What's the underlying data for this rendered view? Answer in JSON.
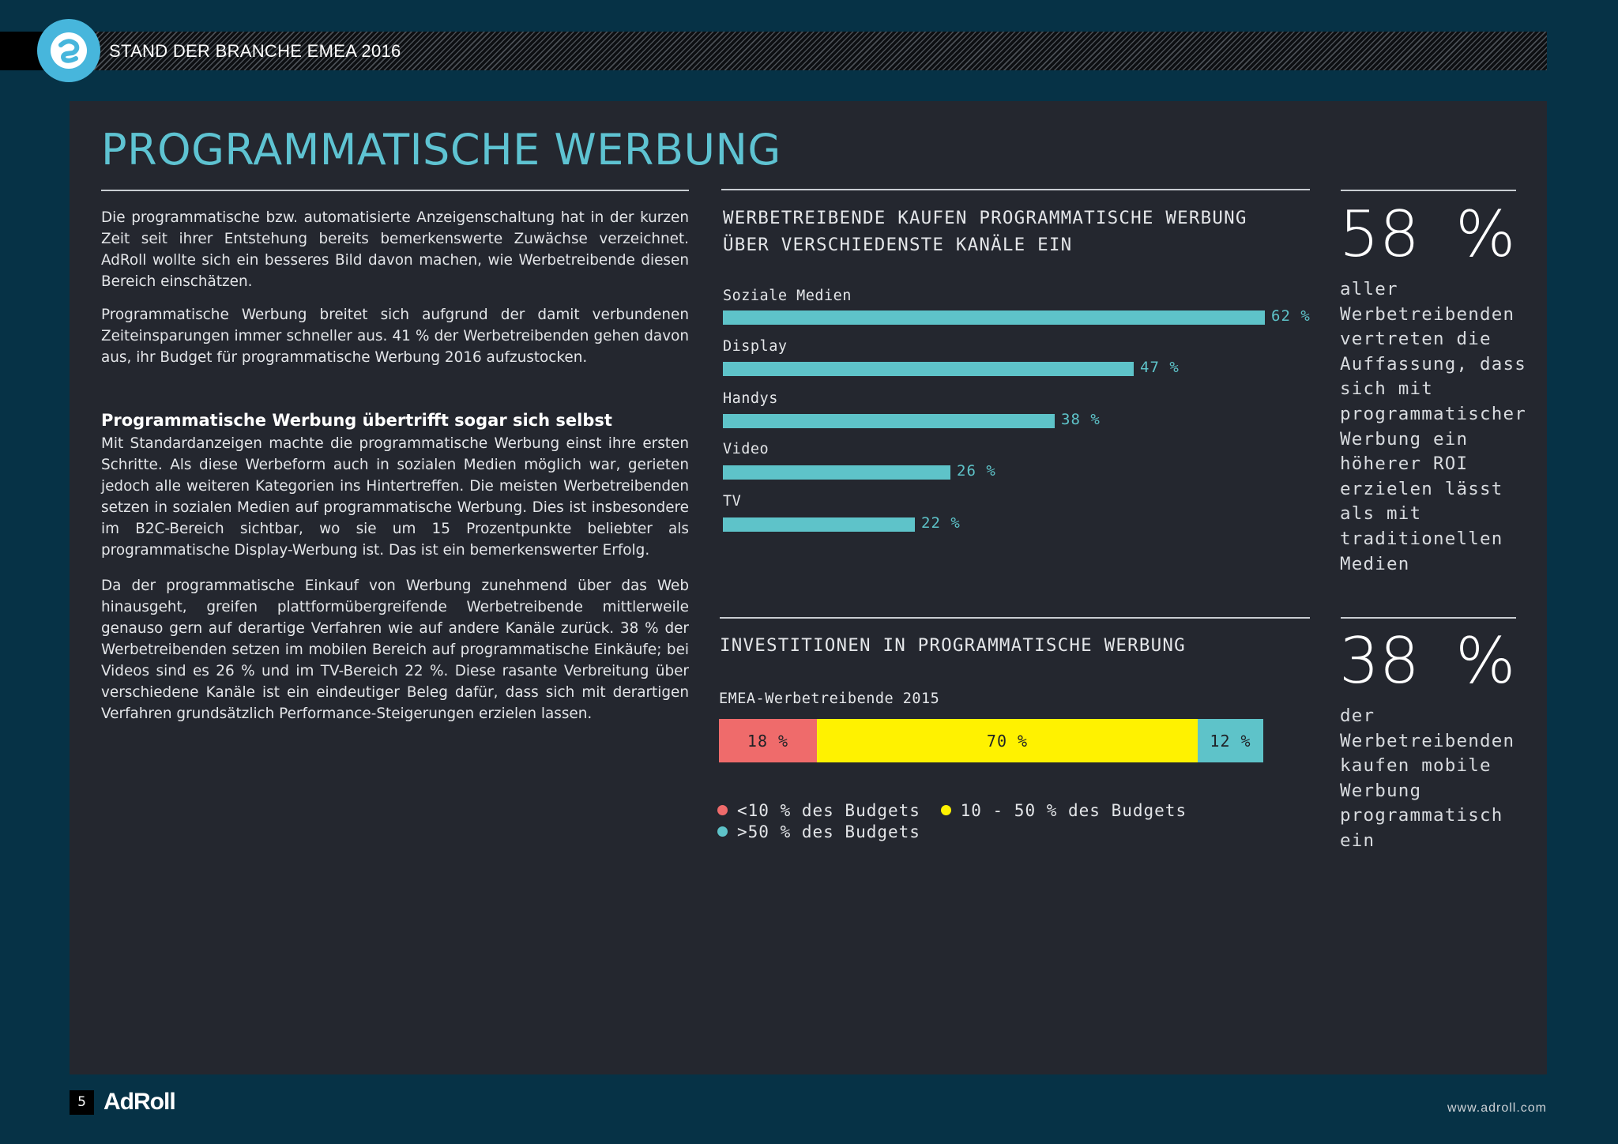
{
  "header": {
    "title": "STAND DER BRANCHE EMEA 2016",
    "logo_icon": "adroll-logo-icon"
  },
  "page_title": "PROGRAMMATISCHE WERBUNG",
  "left_column": {
    "paragraphs": [
      "Die programmatische bzw. automatisierte Anzeigenschaltung hat in der kurzen Zeit seit ihrer Entstehung bereits bemerkenswerte Zuwächse verzeichnet. AdRoll wollte sich ein besseres Bild davon machen, wie Werbetreibende diesen Bereich einschätzen.",
      "Programmatische Werbung breitet sich aufgrund der damit verbundenen Zeiteinsparungen immer schneller aus. 41 % der Werbetreibenden gehen davon aus, ihr Budget für programmatische Werbung 2016 aufzustocken.",
      "Mit Standardanzeigen machte die programmatische Werbung einst ihre ersten Schritte. Als diese Werbeform auch in sozialen Medien möglich war, gerieten jedoch alle weiteren Kategorien ins Hintertreffen. Die meisten Werbetreibenden setzen in sozialen Medien auf programmatische Werbung. Dies ist insbesondere im B2C-Bereich sichtbar, wo sie um 15 Prozentpunkte beliebter als programmatische Display-Werbung ist. Das ist ein bemerkenswerter Erfolg.",
      "Da der programmatische Einkauf von Werbung zunehmend über das Web hinausgeht, greifen plattformübergreifende Werbetreibende mittlerweile genauso gern auf derartige Verfahren wie auf andere Kanäle zurück. 38 % der Werbetreibenden setzen im mobilen Bereich auf programmatische Einkäufe; bei Videos sind es 26 % und im TV-Bereich 22 %. Diese rasante Verbreitung über verschiedene Kanäle ist ein eindeutiger Beleg dafür, dass sich mit derartigen Verfahren grundsätzlich Performance-Steigerungen erzielen lassen."
    ],
    "subheading": "Programmatische Werbung übertrifft sogar sich selbst"
  },
  "chart_data": [
    {
      "type": "bar",
      "orientation": "horizontal",
      "title": "WERBETREIBENDE KAUFEN PROGRAMMATISCHE WERBUNG ÜBER VERSCHIEDENSTE KANÄLE EIN",
      "categories": [
        "Soziale Medien",
        "Display",
        "Handys",
        "Video",
        "TV"
      ],
      "values": [
        62,
        47,
        38,
        26,
        22
      ],
      "value_labels": [
        "62 %",
        "47 %",
        "38 %",
        "26 %",
        "22 %"
      ],
      "bar_color": "#5ec3c9",
      "xlim": [
        0,
        62
      ]
    },
    {
      "type": "bar",
      "orientation": "horizontal",
      "stacked": true,
      "title": "INVESTITIONEN IN PROGRAMMATISCHE WERBUNG",
      "categories": [
        "EMEA-Werbetreibende 2015"
      ],
      "series": [
        {
          "name": "<10 % des Budgets",
          "values": [
            18
          ],
          "label": "18 %",
          "color": "#ef6b6b"
        },
        {
          "name": "10 - 50 % des Budgets",
          "values": [
            70
          ],
          "label": "70 %",
          "color": "#fff200"
        },
        {
          "name": ">50 % des Budgets",
          "values": [
            12
          ],
          "label": "12 %",
          "color": "#5ec3c9"
        }
      ],
      "legend_placement": "bottom"
    }
  ],
  "stats": [
    {
      "value": "58 %",
      "text": "aller Werbetreibenden vertreten die Auffassung, dass sich mit programmatischer Werbung ein höherer ROI erzielen lässt als mit traditionellen Medien"
    },
    {
      "value": "38 %",
      "text": "der Werbetreibenden kaufen mobile Werbung programmatisch ein"
    }
  ],
  "footer": {
    "page_number": "5",
    "brand": "AdRoll",
    "url": "www.adroll.com"
  }
}
